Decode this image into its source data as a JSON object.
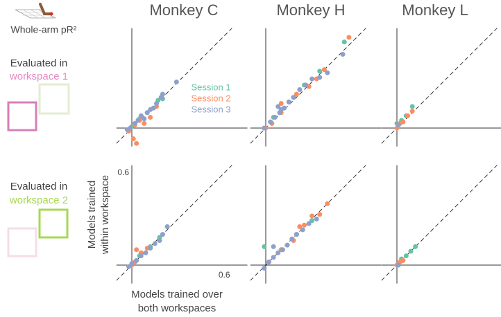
{
  "header": {
    "label": "Whole-arm pR²"
  },
  "columns": [
    "Monkey C",
    "Monkey H",
    "Monkey L"
  ],
  "rows": [
    {
      "line1": "Evaluated in",
      "line2": "workspace 1"
    },
    {
      "line1": "Evaluated in",
      "line2": "workspace 2"
    }
  ],
  "chart_data": [
    {
      "type": "scatter",
      "xlim": [
        -0.1,
        0.75
      ],
      "ylim": [
        -0.12,
        0.65
      ],
      "legend": true,
      "series": [
        {
          "name": "Session 1",
          "color": "#66c2a5",
          "x": [
            0.0,
            0.05,
            0.1,
            0.17,
            0.2
          ],
          "values": [
            0.01,
            0.06,
            0.1,
            0.18,
            0.19
          ]
        },
        {
          "name": "Session 2",
          "color": "#fc8d62",
          "x": [
            -0.02,
            0.01,
            0.03,
            0.02,
            0.08,
            0.12,
            0.16,
            0.05
          ],
          "values": [
            -0.02,
            -0.07,
            -0.1,
            0.02,
            0.03,
            0.07,
            0.14,
            0.05
          ]
        },
        {
          "name": "Session 3",
          "color": "#8da0cb",
          "x": [
            -0.03,
            -0.01,
            0.02,
            0.04,
            0.06,
            0.08,
            0.1,
            0.12,
            0.14,
            0.16,
            0.19,
            0.2,
            0.29
          ],
          "values": [
            -0.01,
            0.0,
            0.03,
            0.05,
            0.08,
            0.06,
            0.1,
            0.12,
            0.13,
            0.16,
            0.2,
            0.22,
            0.3
          ]
        }
      ]
    },
    {
      "type": "scatter",
      "xlim": [
        -0.1,
        0.75
      ],
      "ylim": [
        -0.12,
        0.65
      ],
      "series": [
        {
          "color": "#66c2a5",
          "x": [
            0.05,
            0.15,
            0.25,
            0.35,
            0.51
          ],
          "values": [
            0.07,
            0.17,
            0.28,
            0.37,
            0.56
          ]
        },
        {
          "color": "#fc8d62",
          "x": [
            0.0,
            0.04,
            0.1,
            0.2,
            0.28,
            0.33,
            0.38,
            0.54,
            0.1
          ],
          "values": [
            0.0,
            0.03,
            0.1,
            0.22,
            0.27,
            0.32,
            0.38,
            0.59,
            0.16
          ]
        },
        {
          "color": "#8da0cb",
          "x": [
            -0.01,
            0.03,
            0.06,
            0.09,
            0.12,
            0.15,
            0.18,
            0.22,
            0.26,
            0.3,
            0.35,
            0.4,
            0.5,
            0.08,
            0.1
          ],
          "values": [
            0.0,
            0.04,
            0.07,
            0.1,
            0.13,
            0.17,
            0.2,
            0.25,
            0.28,
            0.32,
            0.33,
            0.36,
            0.48,
            0.14,
            0.12
          ]
        }
      ]
    },
    {
      "type": "scatter",
      "xlim": [
        -0.1,
        0.75
      ],
      "ylim": [
        -0.12,
        0.65
      ],
      "series": [
        {
          "color": "#66c2a5",
          "x": [
            0.0,
            0.03,
            0.06,
            0.1
          ],
          "values": [
            0.03,
            0.05,
            0.08,
            0.14
          ]
        },
        {
          "color": "#fc8d62",
          "x": [
            0.0,
            0.02,
            0.04,
            0.07,
            0.1
          ],
          "values": [
            0.0,
            0.03,
            0.04,
            0.08,
            0.11
          ]
        },
        {
          "color": "#8da0cb",
          "x": [
            0.01
          ],
          "values": [
            0.02
          ]
        }
      ]
    },
    {
      "type": "scatter",
      "xlim": [
        -0.1,
        0.75
      ],
      "ylim": [
        -0.12,
        0.65
      ],
      "xticks": [
        0.6
      ],
      "yticks": [
        0.6
      ],
      "xlabel": [
        "Models trained over",
        "both workspaces"
      ],
      "ylabel": [
        "Models trained",
        "within workspace"
      ],
      "series": [
        {
          "color": "#66c2a5",
          "x": [
            0.05,
            0.12,
            0.18
          ],
          "values": [
            0.06,
            0.12,
            0.18
          ]
        },
        {
          "color": "#fc8d62",
          "x": [
            0.0,
            0.03,
            0.06,
            0.1,
            0.02
          ],
          "values": [
            0.0,
            0.1,
            0.08,
            0.11,
            0.02
          ]
        },
        {
          "color": "#8da0cb",
          "x": [
            -0.02,
            0.0,
            0.03,
            0.06,
            0.09,
            0.12,
            0.15,
            0.18,
            0.2,
            0.23
          ],
          "values": [
            -0.01,
            0.01,
            0.03,
            0.06,
            0.08,
            0.11,
            0.14,
            0.16,
            0.2,
            0.25
          ]
        }
      ]
    },
    {
      "type": "scatter",
      "xlim": [
        -0.1,
        0.75
      ],
      "ylim": [
        -0.12,
        0.65
      ],
      "series": [
        {
          "color": "#66c2a5",
          "x": [
            -0.01,
            0.1,
            0.2,
            0.3
          ],
          "values": [
            0.12,
            0.1,
            0.2,
            0.29
          ]
        },
        {
          "color": "#fc8d62",
          "x": [
            0.02,
            0.1,
            0.18,
            0.25,
            0.3,
            0.35,
            0.4,
            0.22
          ],
          "values": [
            0.02,
            0.1,
            0.16,
            0.26,
            0.32,
            0.33,
            0.4,
            0.25
          ]
        },
        {
          "color": "#8da0cb",
          "x": [
            -0.01,
            0.02,
            0.05,
            0.08,
            0.11,
            0.14,
            0.17,
            0.2,
            0.24,
            0.28,
            0.33,
            0.05
          ],
          "values": [
            -0.02,
            0.02,
            0.05,
            0.08,
            0.1,
            0.13,
            0.17,
            0.2,
            0.23,
            0.27,
            0.3,
            0.12
          ]
        }
      ]
    },
    {
      "type": "scatter",
      "xlim": [
        -0.1,
        0.75
      ],
      "ylim": [
        -0.12,
        0.65
      ],
      "series": [
        {
          "color": "#66c2a5",
          "x": [
            0.03,
            0.06,
            0.09,
            0.12
          ],
          "values": [
            0.04,
            0.06,
            0.09,
            0.12
          ]
        },
        {
          "color": "#fc8d62",
          "x": [
            0.0,
            0.02,
            0.04
          ],
          "values": [
            0.0,
            0.02,
            0.03
          ]
        },
        {
          "color": "#8da0cb",
          "x": [
            0.01
          ],
          "values": [
            0.0
          ]
        }
      ]
    }
  ]
}
